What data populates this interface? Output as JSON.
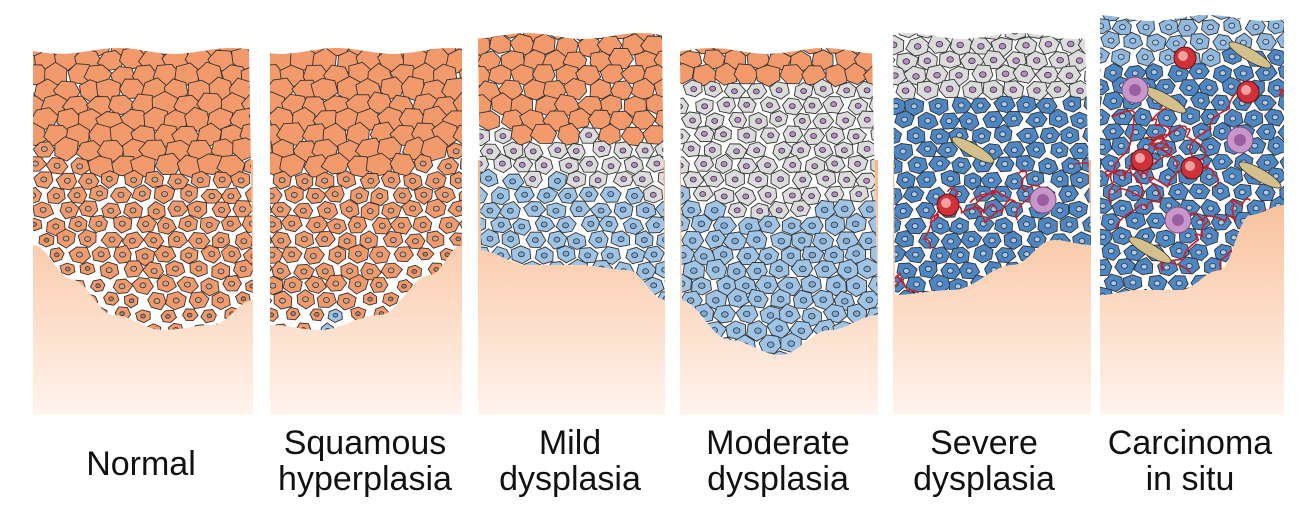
{
  "title": "",
  "stages": [
    {
      "id": "normal",
      "label_lines": [
        "Normal"
      ]
    },
    {
      "id": "squamous-hyperplasia",
      "label_lines": [
        "Squamous",
        "hyperplasia"
      ]
    },
    {
      "id": "mild-dysplasia",
      "label_lines": [
        "Mild",
        "dysplasia"
      ]
    },
    {
      "id": "moderate-dysplasia",
      "label_lines": [
        "Moderate",
        "dysplasia"
      ]
    },
    {
      "id": "severe-dysplasia",
      "label_lines": [
        "Severe",
        "dysplasia"
      ]
    },
    {
      "id": "carcinoma-in-situ",
      "label_lines": [
        "Carcinoma",
        "in situ"
      ]
    }
  ],
  "colors": {
    "squamous_cell": "#f29a6c",
    "squamous_cell_light": "#f8c3a2",
    "dysplastic_grey_cell": "#dcdcdc",
    "dysplastic_blue_cell": "#9fc4e6",
    "severe_blue_cell": "#4d86c4",
    "stroma_top": "#f8b88c",
    "stroma_bottom": "#fff4ee",
    "nucleus_purple": "#b78cc4",
    "vessel_red": "#c8202a",
    "fibroblast": "#d4c08a",
    "outline": "#333333"
  }
}
